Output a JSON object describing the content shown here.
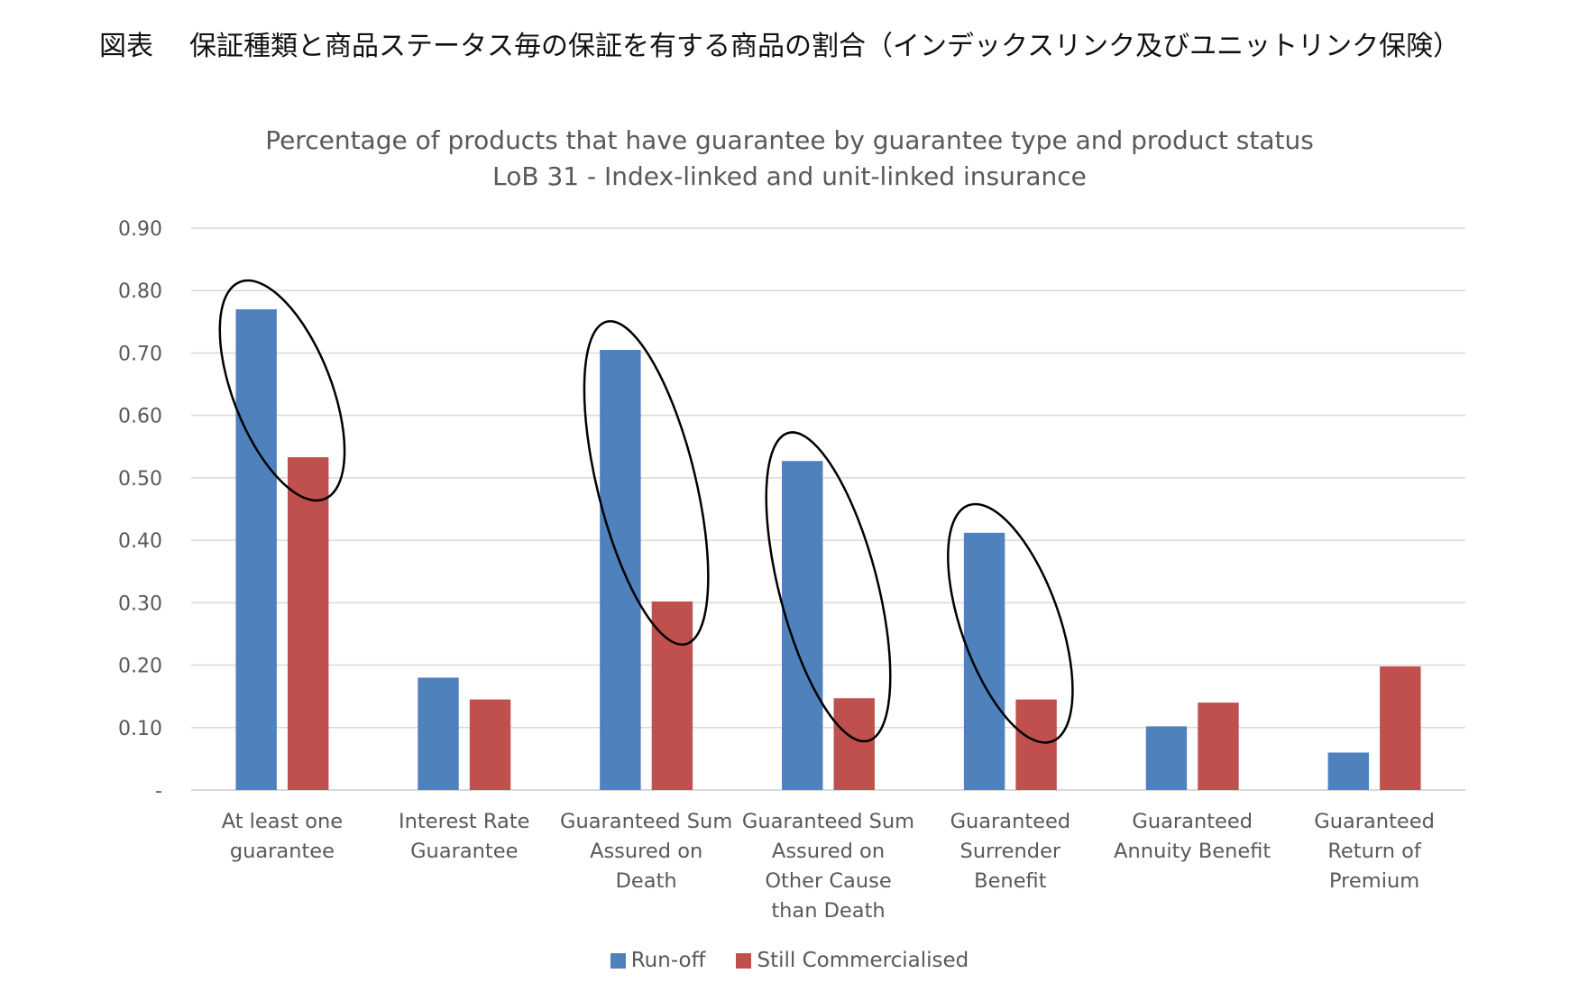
{
  "figure_caption": {
    "label": "図表",
    "text": "保証種類と商品ステータス毎の保証を有する商品の割合（インデックスリンク及びユニットリンク保険）"
  },
  "chart_data": {
    "type": "bar",
    "title": "Percentage of products that have guarantee by guarantee type and product status",
    "subtitle": "LoB 31 - Index-linked and unit-linked insurance",
    "categories": [
      "At least one guarantee",
      "Interest Rate Guarantee",
      "Guaranteed Sum Assured on Death",
      "Guaranteed Sum Assured on Other Cause than Death",
      "Guaranteed Surrender Benefit",
      "Guaranteed Annuity Benefit",
      "Guaranteed Return of Premium"
    ],
    "category_label_lines": [
      [
        "At least one",
        "guarantee"
      ],
      [
        "Interest Rate",
        "Guarantee"
      ],
      [
        "Guaranteed Sum",
        "Assured on",
        "Death"
      ],
      [
        "Guaranteed Sum",
        "Assured on",
        "Other Cause",
        "than Death"
      ],
      [
        "Guaranteed",
        "Surrender",
        "Benefit"
      ],
      [
        "Guaranteed",
        "Annuity Benefit"
      ],
      [
        "Guaranteed",
        "Return of",
        "Premium"
      ]
    ],
    "series": [
      {
        "name": "Run-off",
        "color": "#4f81bd",
        "values": [
          0.77,
          0.18,
          0.705,
          0.527,
          0.412,
          0.102,
          0.06
        ]
      },
      {
        "name": "Still Commercialised",
        "color": "#c0504d",
        "values": [
          0.533,
          0.145,
          0.302,
          0.147,
          0.145,
          0.14,
          0.198
        ]
      }
    ],
    "y_ticks": [
      0,
      0.1,
      0.2,
      0.3,
      0.4,
      0.5,
      0.6,
      0.7,
      0.8,
      0.9
    ],
    "y_tick_labels": [
      "-",
      "0.10",
      "0.20",
      "0.30",
      "0.40",
      "0.50",
      "0.60",
      "0.70",
      "0.80",
      "0.90"
    ],
    "ylim": [
      0,
      0.9
    ],
    "xlabel": "",
    "ylabel": "",
    "grid": true,
    "legend_position": "bottom",
    "annotations": {
      "type": "ellipse-highlight",
      "highlighted_category_indices": [
        0,
        2,
        3,
        4
      ]
    }
  },
  "colors": {
    "grid": "#d9d9d9",
    "axis": "#d9d9d9",
    "text": "#595959",
    "highlight_ellipse": "#000000"
  }
}
